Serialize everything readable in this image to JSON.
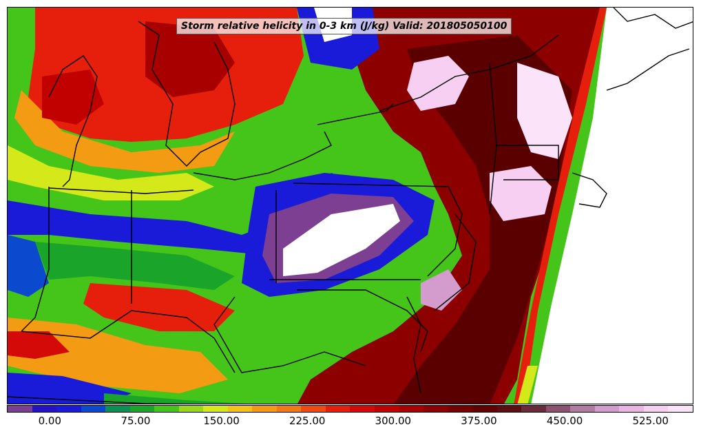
{
  "title": "Storm relative helicity in 0-3 km (J/kg) Valid: 201805050100",
  "colorbar": {
    "tick_labels": [
      "0.00",
      "75.00",
      "150.00",
      "225.00",
      "300.00",
      "375.00",
      "450.00",
      "525.00"
    ],
    "tick_values": [
      0,
      75,
      150,
      225,
      300,
      375,
      450,
      525
    ],
    "range": [
      -37.5,
      562.5
    ],
    "colors": [
      "#7c3f92",
      "#2411c8",
      "#1a1ad9",
      "#0b49cf",
      "#0a8f55",
      "#1aa52a",
      "#45c41a",
      "#9ad81c",
      "#d4e81a",
      "#f2c31a",
      "#f49b14",
      "#f27a12",
      "#ef4b10",
      "#e61f0c",
      "#d40a08",
      "#c10000",
      "#a80000",
      "#8c0000",
      "#760000",
      "#600000",
      "#5a1010",
      "#6b2a3a",
      "#8e4f70",
      "#b07ba0",
      "#d39ccc",
      "#e9b6e3",
      "#f6cff2",
      "#fbe3f9"
    ]
  },
  "map": {
    "region": "Great Lakes / Northeastern US",
    "field_colors": {
      "low_purple": "#7c3f92",
      "blue": "#1a1ad9",
      "green": "#1aa52a",
      "yellow_green": "#9ad81c",
      "yellow": "#f2e81a",
      "orange": "#f49b14",
      "red": "#e61f0c",
      "dark_red": "#8c0000",
      "maroon": "#5a0000",
      "pink": "#f6cff2",
      "white": "#ffffff"
    }
  }
}
